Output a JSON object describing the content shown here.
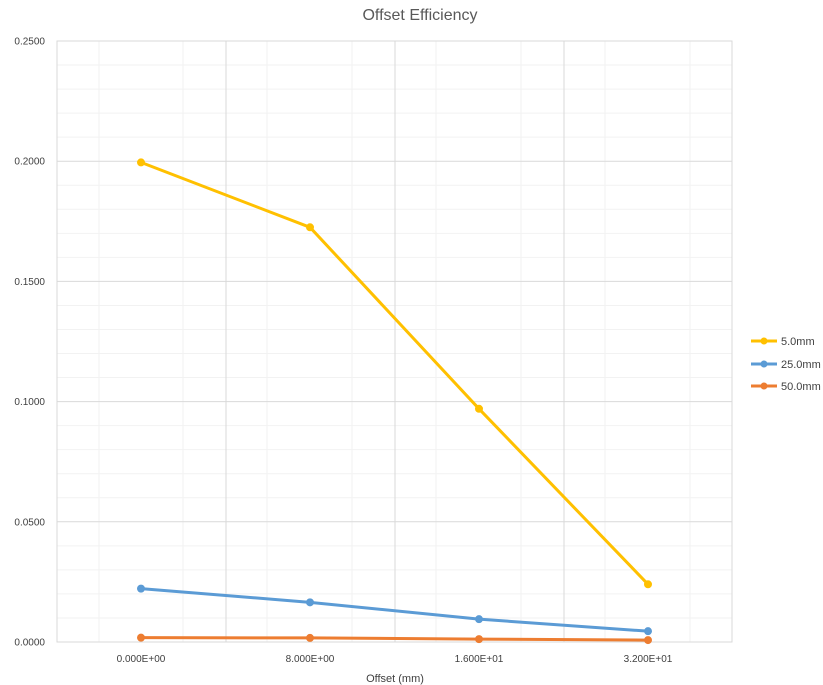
{
  "chart_data": {
    "type": "line",
    "title": "Offset Efficiency",
    "xlabel": "Offset (mm)",
    "ylabel": "",
    "x": [
      0,
      8,
      16,
      32
    ],
    "x_tick_labels": [
      "0.000E+00",
      "8.000E+00",
      "1.600E+01",
      "3.200E+01"
    ],
    "y_tick_labels": [
      "0.0000",
      "0.0500",
      "0.1000",
      "0.1500",
      "0.2000",
      "0.2500"
    ],
    "ylim": [
      0,
      0.25
    ],
    "grid": true,
    "legend_position": "right",
    "series": [
      {
        "name": "5.0mm",
        "color": "#FFC000",
        "values": [
          0.1995,
          0.1725,
          0.097,
          0.024
        ]
      },
      {
        "name": "25.0mm",
        "color": "#5B9BD5",
        "values": [
          0.0222,
          0.0165,
          0.0095,
          0.0045
        ]
      },
      {
        "name": "50.0mm",
        "color": "#ED7D31",
        "values": [
          0.0018,
          0.0017,
          0.0012,
          0.0008
        ]
      }
    ]
  }
}
